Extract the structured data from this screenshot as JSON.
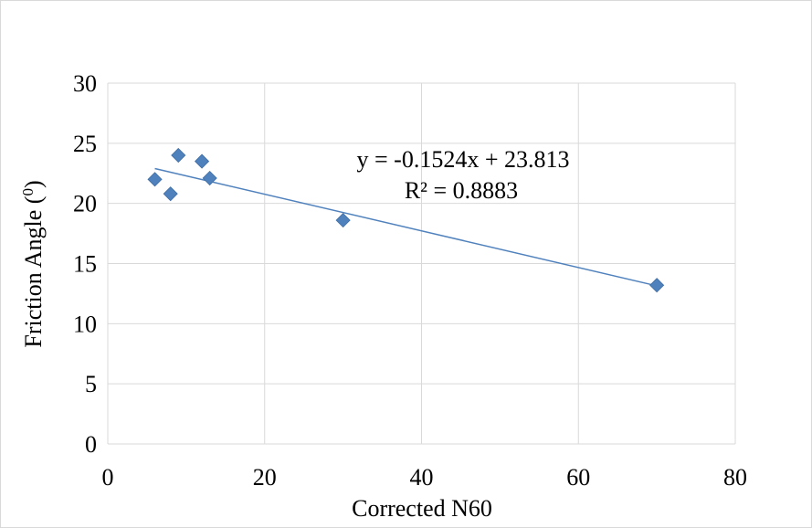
{
  "chart_data": {
    "type": "scatter",
    "title": "",
    "xlabel": "Corrected N60",
    "ylabel": "Friction Angle (",
    "ylabel_superscript": "0",
    "ylabel_suffix": ")",
    "xlim": [
      0,
      80
    ],
    "ylim": [
      0,
      30
    ],
    "x_ticks": [
      0,
      20,
      40,
      60,
      80
    ],
    "y_ticks": [
      0,
      5,
      10,
      15,
      20,
      25,
      30
    ],
    "grid": true,
    "legend": "none",
    "marker": "diamond",
    "colors": {
      "marker": "#4F81BD",
      "trendline": "#4F81BD",
      "grid": "#d9d9d9"
    },
    "series": [
      {
        "points": [
          {
            "x": 6,
            "y": 22.0
          },
          {
            "x": 8,
            "y": 20.8
          },
          {
            "x": 9,
            "y": 24.0
          },
          {
            "x": 12,
            "y": 23.5
          },
          {
            "x": 13,
            "y": 22.1
          },
          {
            "x": 30,
            "y": 18.6
          },
          {
            "x": 70,
            "y": 13.2
          }
        ]
      }
    ],
    "trendline": {
      "type": "linear",
      "slope": -0.1524,
      "intercept": 23.813,
      "x_range": [
        6,
        70
      ],
      "equation_text": "y = -0.1524x + 23.813",
      "r2_text": "R² = 0.8883"
    }
  }
}
